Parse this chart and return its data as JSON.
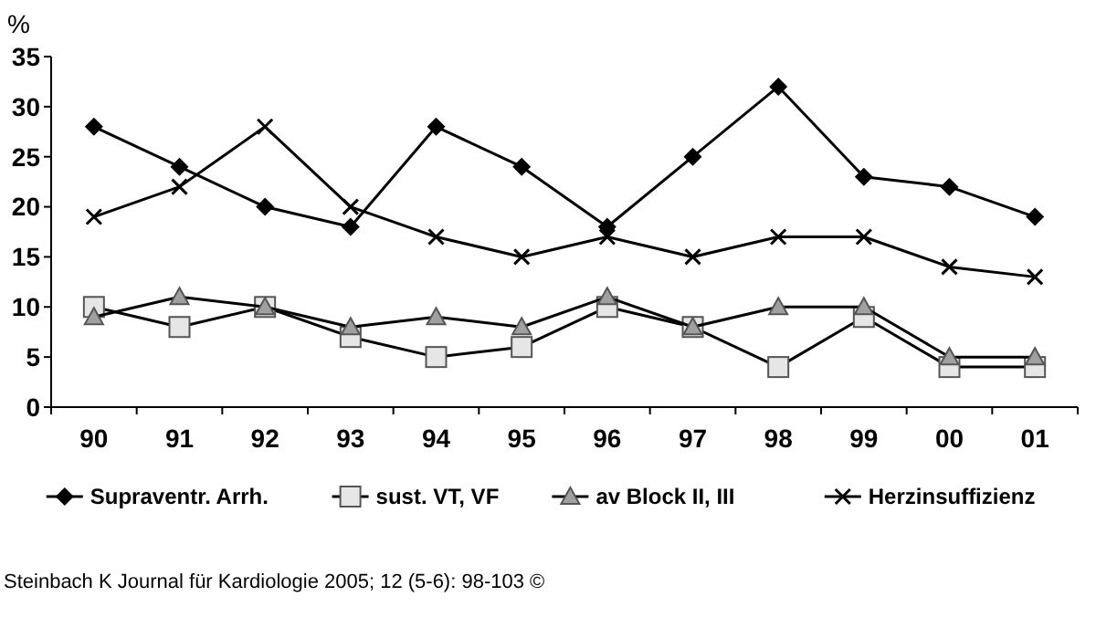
{
  "chart_data": {
    "type": "line",
    "ylabel": "%",
    "categories": [
      "90",
      "91",
      "92",
      "93",
      "94",
      "95",
      "96",
      "97",
      "98",
      "99",
      "00",
      "01"
    ],
    "series": [
      {
        "name": "Supraventr. Arrh.",
        "color": "#000000",
        "marker": "diamond",
        "values": [
          28,
          24,
          20,
          18,
          28,
          24,
          18,
          25,
          32,
          23,
          22,
          19
        ]
      },
      {
        "name": "sust. VT, VF",
        "color": "#000000",
        "marker": "square",
        "values": [
          10,
          8,
          10,
          7,
          5,
          6,
          10,
          8,
          4,
          9,
          4,
          4
        ]
      },
      {
        "name": "av Block II, III",
        "color": "#000000",
        "marker": "triangle",
        "values": [
          9,
          11,
          10,
          8,
          9,
          8,
          11,
          8,
          10,
          10,
          5,
          5
        ]
      },
      {
        "name": "Herzinsuffizienz",
        "color": "#000000",
        "marker": "cross",
        "values": [
          19,
          22,
          28,
          20,
          17,
          15,
          17,
          15,
          17,
          17,
          14,
          13
        ]
      }
    ],
    "ylim": [
      0,
      35
    ],
    "yticks": [
      0,
      5,
      10,
      15,
      20,
      25,
      30,
      35
    ],
    "grid": false,
    "legend": "bottom",
    "line_style": "solid",
    "annotations": [
      "Steinbach K Journal für Kardiologie 2005; 12 (5-6): 98-103 ©"
    ]
  }
}
